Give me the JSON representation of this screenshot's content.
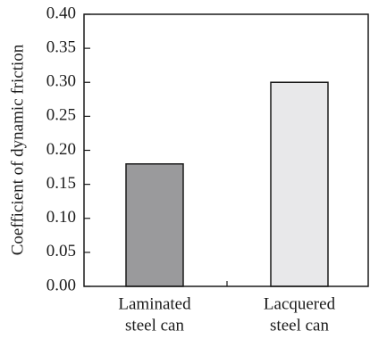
{
  "chart_data": {
    "type": "bar",
    "title": "",
    "xlabel": "",
    "ylabel": "Coefficient of dynamic friction",
    "ylim": [
      0,
      0.4
    ],
    "yticks": [
      "0.00",
      "0.05",
      "0.10",
      "0.15",
      "0.20",
      "0.25",
      "0.30",
      "0.35",
      "0.40"
    ],
    "categories": [
      [
        "Laminated",
        "steel can"
      ],
      [
        "Lacquered",
        "steel can"
      ]
    ],
    "values": [
      0.18,
      0.3
    ],
    "bar_colors": [
      "#9a9a9c",
      "#e8e8ea"
    ],
    "grid": false,
    "legend": "none"
  }
}
